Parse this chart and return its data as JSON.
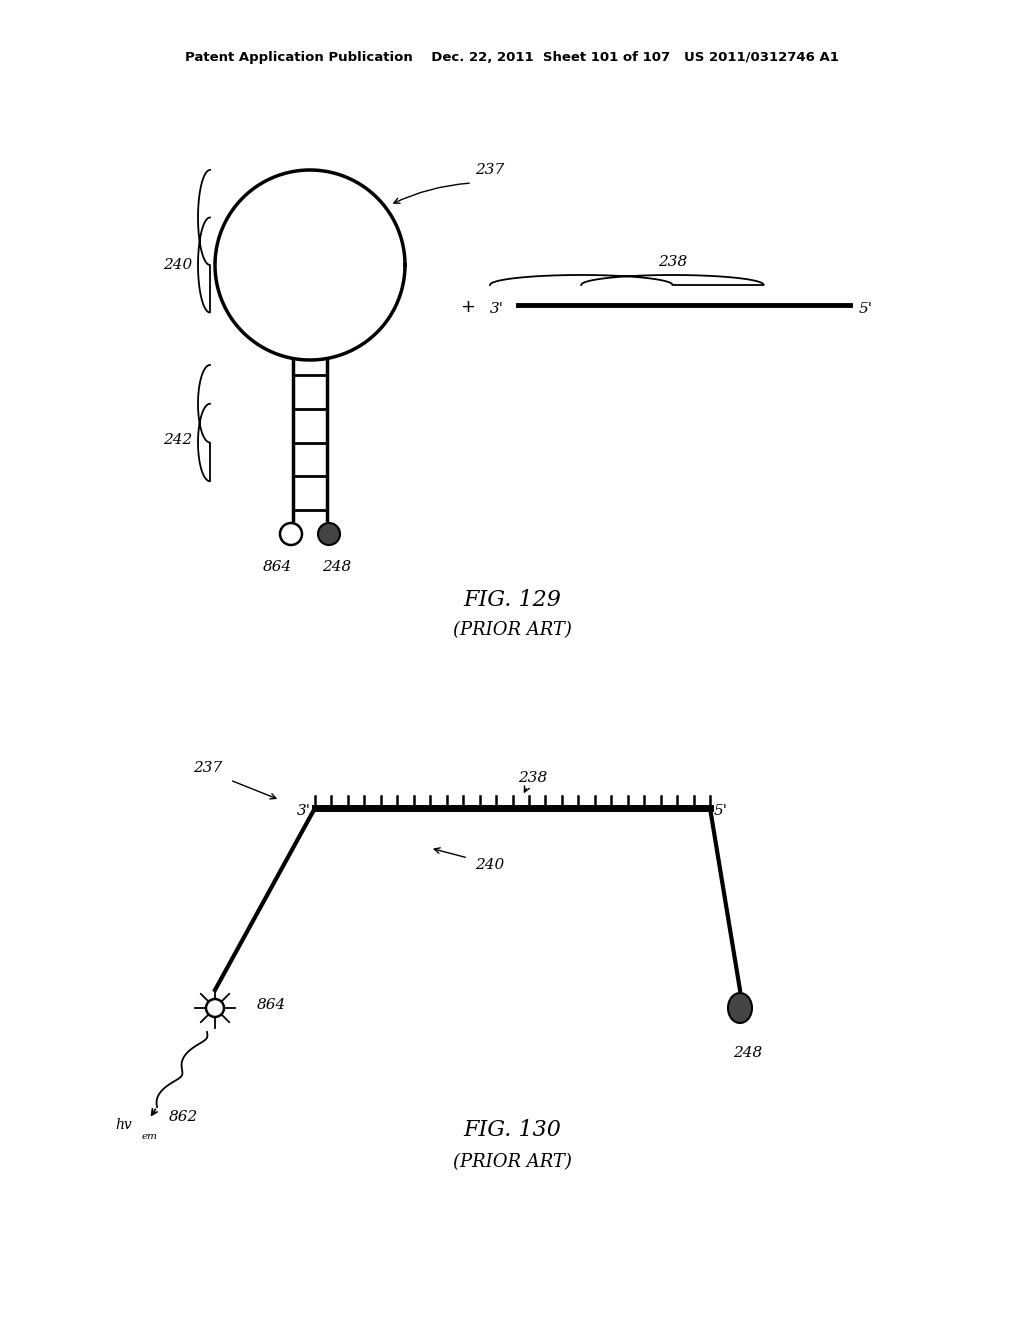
{
  "bg_color": "#ffffff",
  "header_text": "Patent Application Publication    Dec. 22, 2011  Sheet 101 of 107   US 2011/0312746 A1",
  "fig129_title": "FIG. 129",
  "fig129_subtitle": "(PRIOR ART)",
  "fig130_title": "FIG. 130",
  "fig130_subtitle": "(PRIOR ART)",
  "label_237_fig129": "237",
  "label_238_fig129": "238",
  "label_240_fig129": "240",
  "label_242_fig129": "242",
  "label_864_fig129": "864",
  "label_248_fig129": "248",
  "label_3prime": "3'",
  "label_5prime": "5'",
  "label_237_fig130": "237",
  "label_238_fig130": "238",
  "label_240_fig130": "240",
  "label_864_fig130": "864",
  "label_248_fig130": "248",
  "label_862": "862",
  "label_hvem": "hv",
  "label_em_sub": "em"
}
